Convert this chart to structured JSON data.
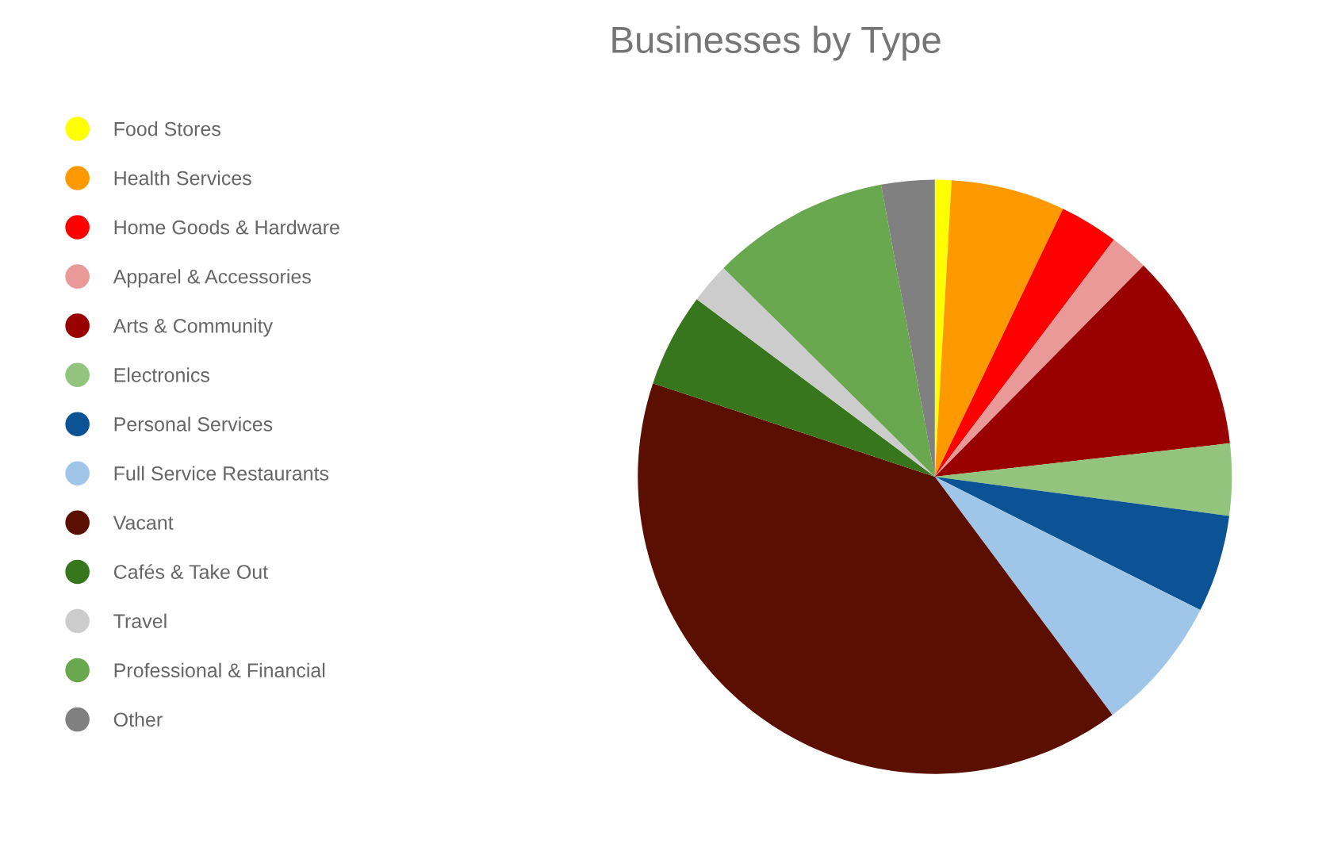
{
  "chart_data": {
    "type": "pie",
    "title": "Businesses by Type",
    "categories": [
      "Food Stores",
      "Health Services",
      "Home Goods & Hardware",
      "Apparel & Accessories",
      "Arts & Community",
      "Electronics",
      "Personal Services",
      "Full Service Restaurants",
      "Vacant",
      "Cafés & Take Out",
      "Travel",
      "Professional & Financial",
      "Other"
    ],
    "values": [
      0.9,
      6.2,
      3.2,
      2.1,
      10.8,
      3.9,
      5.3,
      7.4,
      40.3,
      5.1,
      2.2,
      9.7,
      2.9
    ],
    "colors": [
      "#ffff00",
      "#ff9900",
      "#ff0000",
      "#ea9999",
      "#990000",
      "#93c47d",
      "#0b5394",
      "#9fc5e8",
      "#5b0f00",
      "#38761d",
      "#cccccc",
      "#6aa84f",
      "#808080"
    ],
    "legend": "left"
  }
}
